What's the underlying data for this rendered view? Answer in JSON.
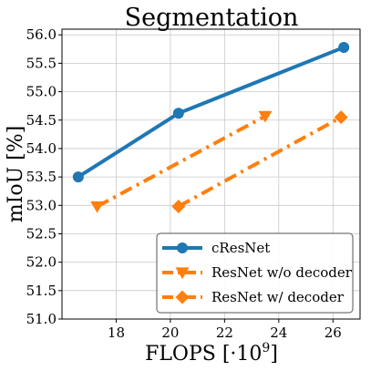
{
  "chart_data": {
    "type": "line",
    "title": "Segmentation",
    "xlabel": "FLOPS [·10",
    "xlabel_exponent": "9",
    "xlabel_suffix": "]",
    "ylabel": "mIoU [%]",
    "xlim": [
      16.0,
      27.0
    ],
    "ylim": [
      51.0,
      56.1
    ],
    "xticks": [
      "18",
      "20",
      "22",
      "24",
      "26"
    ],
    "yticks": [
      "51.0",
      "51.5",
      "52.0",
      "52.5",
      "53.0",
      "53.5",
      "54.0",
      "54.5",
      "55.0",
      "55.5",
      "56.0"
    ],
    "grid": true,
    "legend_position": "lower-right",
    "series": [
      {
        "name": "cResNet",
        "color": "#1f77b4",
        "linestyle": "solid",
        "marker": "circle",
        "x": [
          16.6,
          20.3,
          26.4
        ],
        "y": [
          53.5,
          54.62,
          55.78
        ]
      },
      {
        "name": "ResNet w/o decoder",
        "color": "#ff7f0e",
        "linestyle": "dashdot",
        "marker": "triangle-down",
        "x": [
          17.3,
          23.5
        ],
        "y": [
          52.98,
          54.57
        ]
      },
      {
        "name": "ResNet w/ decoder",
        "color": "#ff7f0e",
        "linestyle": "dashdot",
        "marker": "diamond",
        "x": [
          20.3,
          26.3
        ],
        "y": [
          52.98,
          54.55
        ]
      }
    ]
  }
}
